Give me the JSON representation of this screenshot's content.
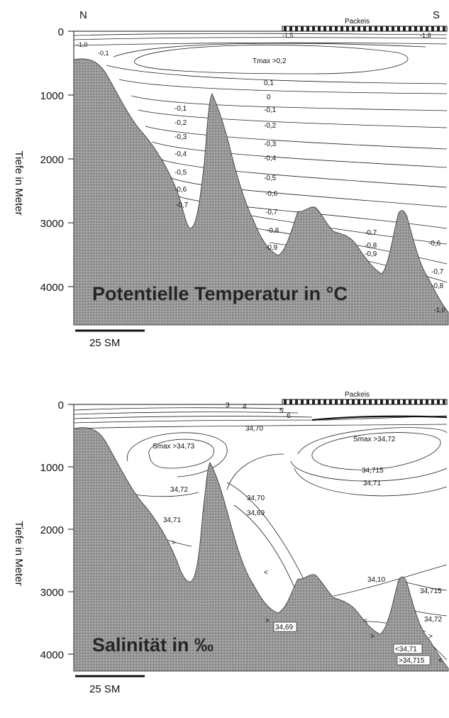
{
  "compass": {
    "north": "N",
    "south": "S"
  },
  "panels": [
    {
      "title": "Potentielle Temperatur in °C",
      "ylabel": "Tiefe in Meter",
      "yticks": [
        "0",
        "1000",
        "2000",
        "3000",
        "4000"
      ],
      "ice_label": "Packeis",
      "scale_label": "25 SM",
      "ice_marks": [
        "-1,5",
        "-1,8"
      ],
      "annotations": {
        "surface_minus1_0": "-1,0",
        "surface_minus0_1": "-0,1",
        "tmax": "Tmax >0,2",
        "bottom_minus1_0": "-1,0"
      },
      "left_labels": [
        "-0,1",
        "-0,2",
        "-0,3",
        "-0,4",
        "-0,5",
        "-0,6",
        "-0,7"
      ],
      "mid_labels": [
        "0,1",
        "0",
        "-0,1",
        "-0,2",
        "-0,3",
        "-0,4",
        "-0,5",
        "-0,6",
        "-0,7",
        "-0,8",
        "-0,9"
      ],
      "right_labels": [
        "-0,7",
        "-0,8",
        "-0,9",
        "-0,6",
        "-0,7",
        "-0,8"
      ]
    },
    {
      "title": "Salinität in ‰",
      "ylabel": "Tiefe in Meter",
      "yticks": [
        "0",
        "1000",
        "2000",
        "3000",
        "4000"
      ],
      "ice_label": "Packeis",
      "scale_label": "25 SM",
      "surface_labels": [
        "3",
        "4",
        "5",
        "6"
      ],
      "annotations": {
        "surface_34_70": "34,70",
        "smax_left": "Smax >34,73",
        "smax_right": "Smax >34,72",
        "l34_715_top": "34,715",
        "l34_71_top": "34,71",
        "l34_72_left": "34,72",
        "l34_70_mid": "34,70",
        "l34_71_left": "34,71",
        "l34_69_mid": "34,69",
        "l34_10": "34,10",
        "l34_715_right": "34,715",
        "l34_72_right": "34,72",
        "l34_69_box": "34,69",
        "lt_34_71": "<34,71",
        "gt_34_715": ">34,715"
      },
      "arrows": [
        ">",
        "<",
        ">",
        "<",
        ">",
        ">",
        "<"
      ]
    }
  ]
}
